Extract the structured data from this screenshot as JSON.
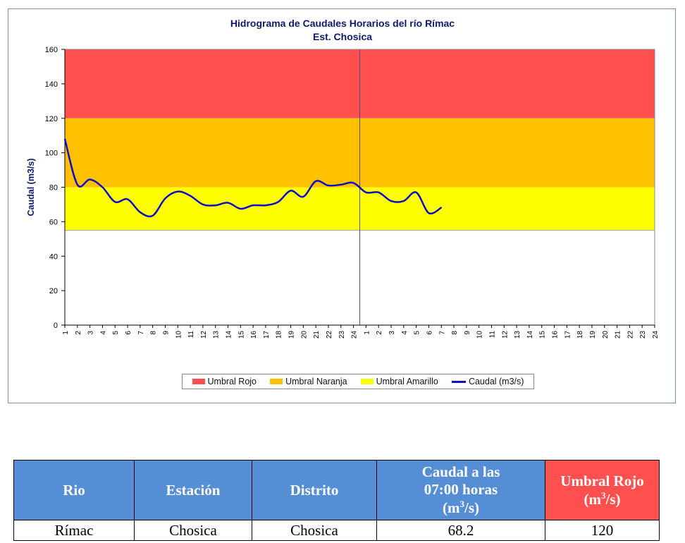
{
  "chart_data": {
    "type": "line",
    "title": "Hidrograma de Caudales Horarios del río Rímac",
    "subtitle": "Est. Chosica",
    "ylabel": "Caudal (m3/s)",
    "ylim": [
      0,
      160
    ],
    "yticks": [
      0,
      20,
      40,
      60,
      80,
      100,
      120,
      140,
      160
    ],
    "x_tick_labels": [
      "1",
      "2",
      "3",
      "4",
      "5",
      "6",
      "7",
      "8",
      "9",
      "10",
      "11",
      "12",
      "13",
      "14",
      "15",
      "16",
      "17",
      "18",
      "19",
      "20",
      "21",
      "22",
      "23",
      "24",
      "1",
      "2",
      "3",
      "4",
      "5",
      "6",
      "7",
      "8",
      "9",
      "10",
      "11",
      "12",
      "13",
      "14",
      "15",
      "16",
      "17",
      "18",
      "19",
      "20",
      "21",
      "22",
      "23",
      "24"
    ],
    "bands": [
      {
        "name": "Umbral Rojo",
        "from": 120,
        "to": 160,
        "color": "#ff4f4f"
      },
      {
        "name": "Umbral Naranja",
        "from": 80,
        "to": 120,
        "color": "#ffc000"
      },
      {
        "name": "Umbral Amarillo",
        "from": 55,
        "to": 80,
        "color": "#ffff00"
      }
    ],
    "series": [
      {
        "name": "Caudal (m3/s)",
        "color": "#0a10c8",
        "values": [
          108,
          81.5,
          84.5,
          80,
          71.5,
          73,
          65.5,
          63.5,
          73.5,
          77.5,
          75,
          70,
          69.5,
          71,
          67.5,
          69.5,
          69.5,
          71.5,
          78,
          74.5,
          83.5,
          81,
          81.5,
          82.5,
          77,
          77,
          72,
          72,
          77,
          65,
          68.2
        ]
      }
    ],
    "grid": false,
    "legend": "bottom"
  },
  "legend": {
    "items": [
      {
        "label": "Umbral Rojo",
        "color": "#ff4f4f",
        "kind": "swatch"
      },
      {
        "label": "Umbral Naranja",
        "color": "#ffc000",
        "kind": "swatch"
      },
      {
        "label": "Umbral Amarillo",
        "color": "#ffff00",
        "kind": "swatch"
      },
      {
        "label": "Caudal (m3/s)",
        "color": "#0a10c8",
        "kind": "line"
      }
    ]
  },
  "table": {
    "headers": {
      "rio": "Rio",
      "estacion": "Estación",
      "distrito": "Distrito",
      "caudal_line1": "Caudal a las",
      "caudal_line2": "07:00 horas",
      "caudal_unit_pre": "(m",
      "caudal_unit_sup": "3",
      "caudal_unit_post": "/s)",
      "umbral_line1": "Umbral Rojo",
      "umbral_unit_pre": "(m",
      "umbral_unit_sup": "3",
      "umbral_unit_post": "/s)"
    },
    "row": {
      "rio": "Rímac",
      "estacion": "Chosica",
      "distrito": "Chosica",
      "caudal": "68.2",
      "umbral": "120"
    }
  }
}
